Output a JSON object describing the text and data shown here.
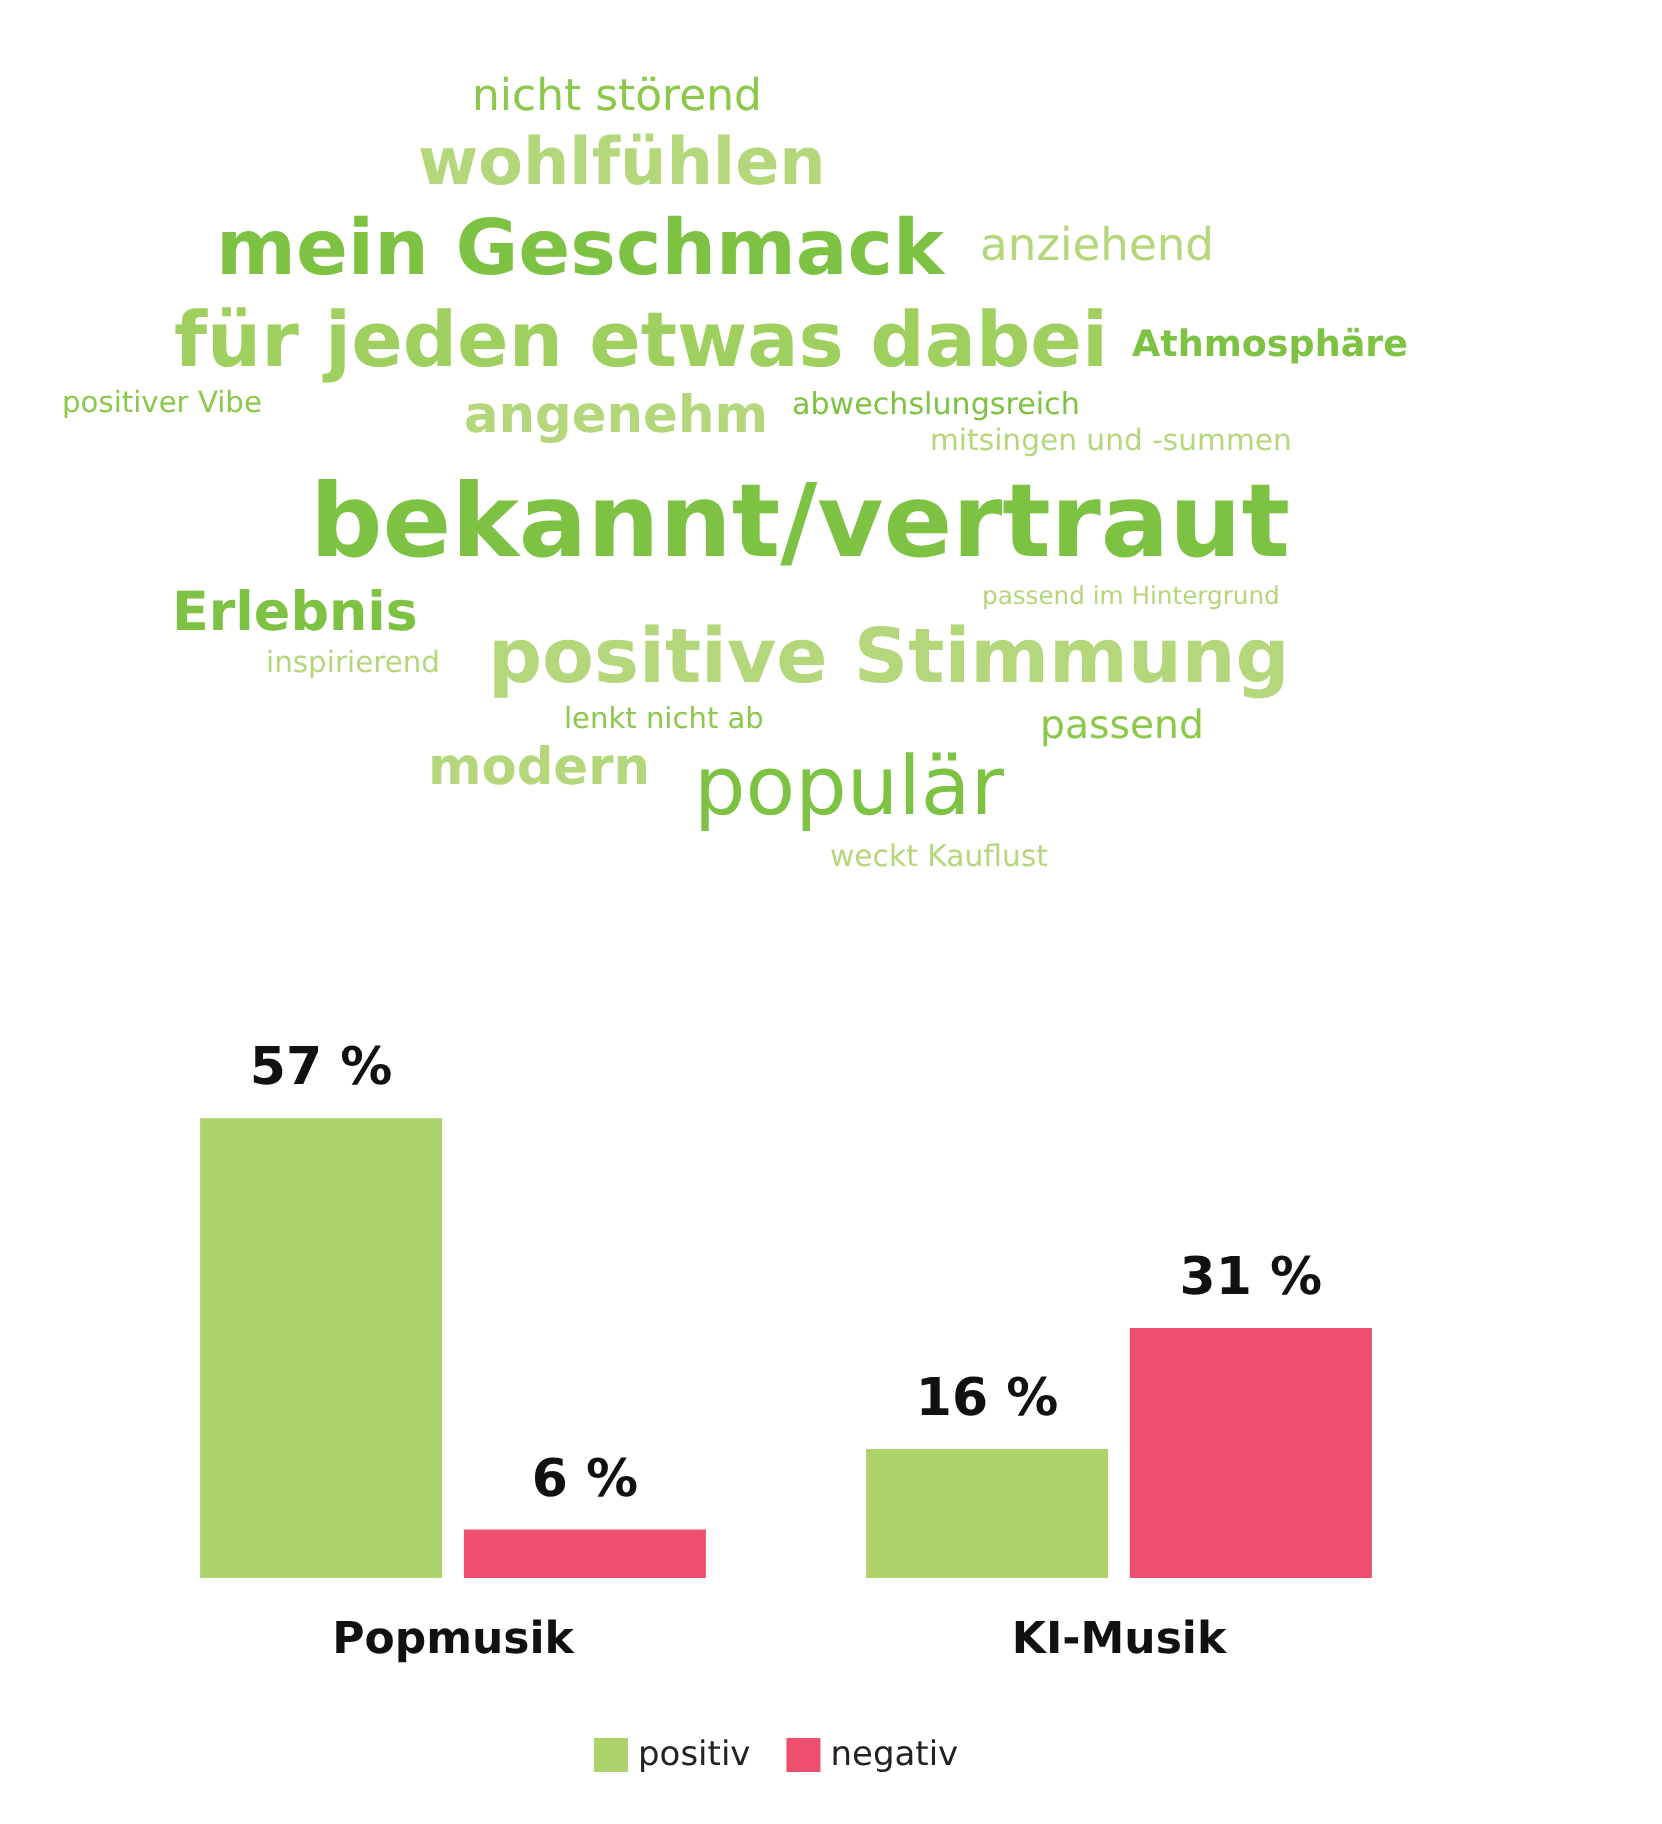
{
  "chart_data": [
    {
      "type": "other",
      "annotations": [
        "nicht störend",
        "wohlfühlen",
        "mein Geschmack",
        "anziehend",
        "für jeden etwas dabei",
        "positiver Vibe",
        "angenehm",
        "abwechslungsreich",
        "mitsingen und -summen",
        "Athmosphäre",
        "bekannt/vertraut",
        "Erlebnis",
        "positive Stimmung",
        "passend im Hintergrund",
        "inspirierend",
        "lenkt nicht ab",
        "passend",
        "modern",
        "populär",
        "weckt Kauflust"
      ]
    },
    {
      "type": "bar",
      "categories": [
        "Popmusik",
        "KI-Musik"
      ],
      "series": [
        {
          "name": "positiv",
          "color": "#aed36c",
          "values": [
            57,
            16
          ],
          "value_labels": [
            "57 %",
            "16 %"
          ]
        },
        {
          "name": "negativ",
          "color": "#ee4f6e",
          "values": [
            6,
            31
          ],
          "value_labels": [
            "6 %",
            "31 %"
          ]
        }
      ],
      "legend": "bottom"
    }
  ]
}
